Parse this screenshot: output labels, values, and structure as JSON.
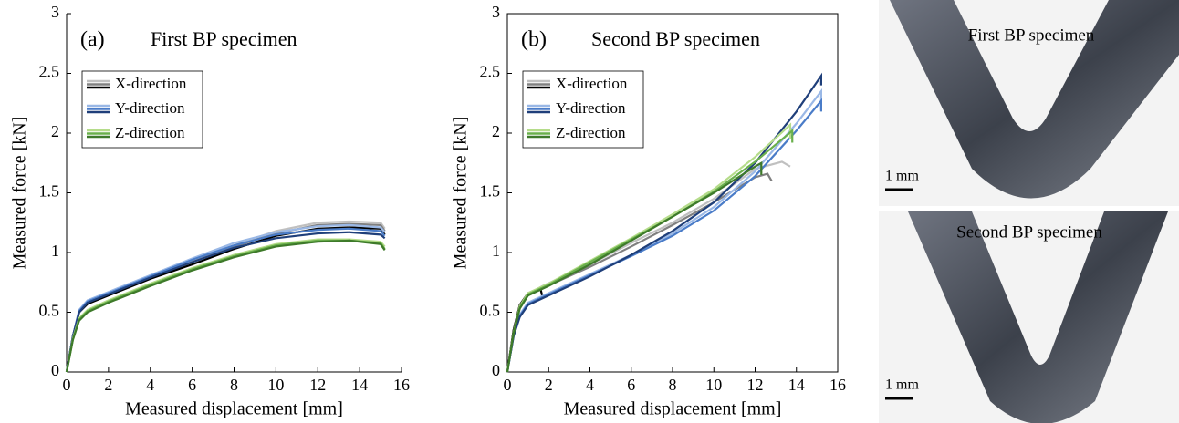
{
  "chart_data": [
    {
      "type": "line",
      "panel": "(a)",
      "title": "First BP specimen",
      "xlabel": "Measured displacement [mm]",
      "ylabel": "Measured force [kN]",
      "xlim": [
        0,
        16
      ],
      "ylim": [
        0,
        3
      ],
      "xticks": [
        0,
        2,
        4,
        6,
        8,
        10,
        12,
        14,
        16
      ],
      "yticks": [
        0,
        0.5,
        1,
        1.5,
        2,
        2.5,
        3
      ],
      "frame": false,
      "series": [
        {
          "name": "X-direction",
          "lines": [
            {
              "color": "#c0c0c0",
              "x": [
                0,
                0.3,
                0.6,
                1,
                2,
                4,
                6,
                8,
                10,
                12,
                13.5,
                15,
                15.2
              ],
              "values": [
                0,
                0.3,
                0.5,
                0.58,
                0.66,
                0.8,
                0.93,
                1.06,
                1.18,
                1.25,
                1.26,
                1.25,
                1.2
              ]
            },
            {
              "color": "#808080",
              "x": [
                0,
                0.3,
                0.6,
                1,
                2,
                4,
                6,
                8,
                10,
                12,
                13.5,
                15,
                15.2
              ],
              "values": [
                0,
                0.3,
                0.5,
                0.57,
                0.65,
                0.79,
                0.92,
                1.05,
                1.16,
                1.23,
                1.24,
                1.23,
                1.18
              ]
            },
            {
              "color": "#000000",
              "x": [
                0,
                0.3,
                0.6,
                1,
                2,
                4,
                6,
                8,
                10,
                12,
                13.5,
                15,
                15.2
              ],
              "values": [
                0,
                0.3,
                0.5,
                0.57,
                0.64,
                0.78,
                0.9,
                1.03,
                1.14,
                1.2,
                1.21,
                1.2,
                1.15
              ]
            }
          ]
        },
        {
          "name": "Y-direction",
          "lines": [
            {
              "color": "#9ab8e6",
              "x": [
                0,
                0.3,
                0.6,
                1,
                2,
                4,
                6,
                8,
                10,
                12,
                13.5,
                15,
                15.2
              ],
              "values": [
                0,
                0.3,
                0.52,
                0.6,
                0.67,
                0.81,
                0.95,
                1.08,
                1.17,
                1.22,
                1.23,
                1.21,
                1.17
              ]
            },
            {
              "color": "#4a7cc8",
              "x": [
                0,
                0.3,
                0.6,
                1,
                2,
                4,
                6,
                8,
                10,
                12,
                13.5,
                15,
                15.2
              ],
              "values": [
                0,
                0.3,
                0.51,
                0.59,
                0.66,
                0.8,
                0.94,
                1.06,
                1.15,
                1.19,
                1.2,
                1.18,
                1.14
              ]
            },
            {
              "color": "#1f3f7a",
              "x": [
                0,
                0.3,
                0.6,
                1,
                2,
                4,
                6,
                8,
                10,
                12,
                13.5,
                15,
                15.2
              ],
              "values": [
                0,
                0.3,
                0.5,
                0.58,
                0.65,
                0.79,
                0.92,
                1.04,
                1.12,
                1.16,
                1.17,
                1.15,
                1.12
              ]
            }
          ]
        },
        {
          "name": "Z-direction",
          "lines": [
            {
              "color": "#b5dc8a",
              "x": [
                0,
                0.3,
                0.6,
                1,
                2,
                4,
                6,
                8,
                10,
                12,
                13.5,
                15,
                15.2
              ],
              "values": [
                0,
                0.28,
                0.45,
                0.52,
                0.6,
                0.74,
                0.87,
                0.98,
                1.07,
                1.11,
                1.11,
                1.09,
                1.05
              ]
            },
            {
              "color": "#6ab04c",
              "x": [
                0,
                0.3,
                0.6,
                1,
                2,
                4,
                6,
                8,
                10,
                12,
                13.5,
                15,
                15.2
              ],
              "values": [
                0,
                0.27,
                0.44,
                0.51,
                0.59,
                0.73,
                0.86,
                0.97,
                1.06,
                1.1,
                1.1,
                1.08,
                1.03
              ]
            },
            {
              "color": "#3e7a2a",
              "x": [
                0,
                0.3,
                0.6,
                1,
                2,
                4,
                6,
                8,
                10,
                12,
                13.5,
                15,
                15.2
              ],
              "values": [
                0,
                0.27,
                0.43,
                0.5,
                0.58,
                0.72,
                0.85,
                0.96,
                1.05,
                1.09,
                1.1,
                1.07,
                1.02
              ]
            }
          ]
        }
      ]
    },
    {
      "type": "line",
      "panel": "(b)",
      "title": "Second BP specimen",
      "xlabel": "Measured displacement [mm]",
      "ylabel": "Measured force [kN]",
      "xlim": [
        0,
        16
      ],
      "ylim": [
        0,
        3
      ],
      "xticks": [
        0,
        2,
        4,
        6,
        8,
        10,
        12,
        14,
        16
      ],
      "yticks": [
        0,
        0.5,
        1,
        1.5,
        2,
        2.5,
        3
      ],
      "frame": true,
      "series": [
        {
          "name": "X-direction",
          "lines": [
            {
              "color": "#c0c0c0",
              "x": [
                0,
                0.3,
                0.6,
                1,
                1.7,
                4,
                6,
                8,
                10,
                12,
                13.3,
                13.7
              ],
              "values": [
                0,
                0.35,
                0.55,
                0.65,
                0.72,
                0.9,
                1.08,
                1.25,
                1.45,
                1.7,
                1.76,
                1.72
              ]
            },
            {
              "color": "#808080",
              "x": [
                0,
                0.3,
                0.6,
                1,
                1.7,
                4,
                6,
                8,
                10,
                12,
                12.6,
                12.8
              ],
              "values": [
                0,
                0.35,
                0.55,
                0.64,
                0.7,
                0.88,
                1.05,
                1.23,
                1.42,
                1.63,
                1.66,
                1.6
              ]
            },
            {
              "color": "#000000",
              "x": [
                0,
                0.3,
                0.6,
                1,
                1.6,
                1.7
              ],
              "values": [
                0,
                0.35,
                0.56,
                0.66,
                0.7,
                0.63
              ]
            }
          ]
        },
        {
          "name": "Y-direction",
          "lines": [
            {
              "color": "#9ab8e6",
              "x": [
                0,
                0.3,
                0.6,
                1,
                2,
                4,
                6,
                8,
                10,
                12,
                14,
                15.2,
                15.2
              ],
              "values": [
                0,
                0.3,
                0.48,
                0.58,
                0.66,
                0.82,
                0.98,
                1.16,
                1.38,
                1.68,
                2.08,
                2.35,
                2.2
              ]
            },
            {
              "color": "#4a7cc8",
              "x": [
                0,
                0.3,
                0.6,
                1,
                2,
                4,
                6,
                8,
                10,
                12,
                14,
                15.2,
                15.2
              ],
              "values": [
                0,
                0.3,
                0.47,
                0.57,
                0.65,
                0.81,
                0.97,
                1.14,
                1.35,
                1.64,
                2.02,
                2.27,
                2.18
              ]
            },
            {
              "color": "#1f3f7a",
              "x": [
                0,
                0.3,
                0.6,
                1,
                2,
                4,
                6,
                8,
                10,
                12,
                14,
                15.2,
                15.2
              ],
              "values": [
                0,
                0.3,
                0.46,
                0.56,
                0.64,
                0.8,
                0.98,
                1.18,
                1.42,
                1.75,
                2.18,
                2.48,
                2.4
              ]
            }
          ]
        },
        {
          "name": "Z-direction",
          "lines": [
            {
              "color": "#b5dc8a",
              "x": [
                0,
                0.3,
                0.6,
                1,
                2,
                4,
                6,
                8,
                10,
                12,
                13.7,
                13.7
              ],
              "values": [
                0,
                0.33,
                0.55,
                0.66,
                0.74,
                0.93,
                1.12,
                1.32,
                1.53,
                1.8,
                2.07,
                1.95
              ]
            },
            {
              "color": "#6ab04c",
              "x": [
                0,
                0.3,
                0.6,
                1,
                2,
                4,
                6,
                8,
                10,
                12,
                13.8,
                13.8
              ],
              "values": [
                0,
                0.33,
                0.54,
                0.65,
                0.73,
                0.92,
                1.11,
                1.3,
                1.51,
                1.76,
                2.02,
                1.92
              ]
            },
            {
              "color": "#3e7a2a",
              "x": [
                0,
                0.3,
                0.6,
                1,
                2,
                4,
                6,
                8,
                10,
                12,
                12.3,
                12.3
              ],
              "values": [
                0,
                0.32,
                0.53,
                0.64,
                0.72,
                0.9,
                1.1,
                1.3,
                1.5,
                1.72,
                1.75,
                1.65
              ]
            }
          ]
        }
      ]
    }
  ],
  "photos": [
    {
      "label": "First BP specimen",
      "scale": "1 mm"
    },
    {
      "label": "Second BP specimen",
      "scale": "1 mm"
    }
  ]
}
